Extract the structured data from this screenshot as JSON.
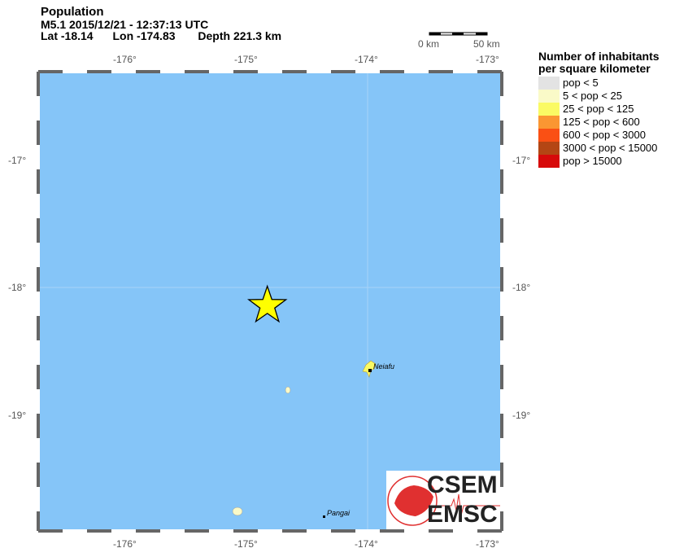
{
  "header": {
    "title": "Population",
    "line2": "M5.1  2015/12/21 - 12:37:13 UTC",
    "line3_lat": "Lat -18.14",
    "line3_lon": "Lon -174.83",
    "line3_depth": "Depth 221.3 km"
  },
  "scale_bar": {
    "start": "0 km",
    "end": "50 km"
  },
  "axes": {
    "lon_ticks": [
      "-176°",
      "-175°",
      "-174°",
      "-173°"
    ],
    "lat_ticks": [
      "-17°",
      "-18°",
      "-19°"
    ]
  },
  "epicenter": {
    "lat": -18.14,
    "lon": -174.83,
    "color": "#ffff00"
  },
  "places": [
    {
      "name": "Neiafu"
    },
    {
      "name": "Pangai"
    }
  ],
  "legend": {
    "title1": "Number of inhabitants",
    "title2": "per square kilometer",
    "items": [
      {
        "label": "pop < 5",
        "color": "#e3e3e3"
      },
      {
        "label": "5 < pop < 25",
        "color": "#fafac8"
      },
      {
        "label": "25 < pop < 125",
        "color": "#fafa64"
      },
      {
        "label": "125 < pop < 600",
        "color": "#fa9632"
      },
      {
        "label": "600 < pop < 3000",
        "color": "#fa5014"
      },
      {
        "label": "3000 < pop < 15000",
        "color": "#b44614"
      },
      {
        "label": "pop > 15000",
        "color": "#d70a0a"
      }
    ]
  },
  "colors": {
    "sea": "#85c5f8",
    "border": "#666666"
  },
  "logo": {
    "top": "CSEM",
    "bottom": "EMSC"
  }
}
